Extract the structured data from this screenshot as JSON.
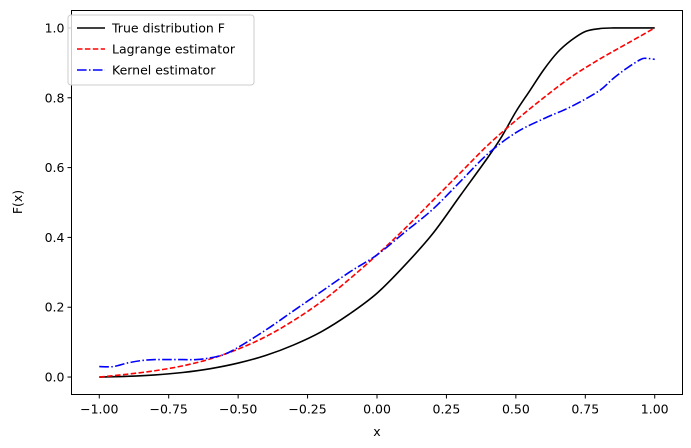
{
  "chart_data": {
    "type": "line",
    "title": "",
    "xlabel": "x",
    "ylabel": "F(x)",
    "xlim": [
      -1.1,
      1.1
    ],
    "ylim": [
      -0.05,
      1.05
    ],
    "xticks": [
      -1.0,
      -0.75,
      -0.5,
      -0.25,
      0.0,
      0.25,
      0.5,
      0.75,
      1.0
    ],
    "xtick_labels": [
      "−1.00",
      "−0.75",
      "−0.50",
      "−0.25",
      "0.00",
      "0.25",
      "0.50",
      "0.75",
      "1.00"
    ],
    "yticks": [
      0.0,
      0.2,
      0.4,
      0.6,
      0.8,
      1.0
    ],
    "ytick_labels": [
      "0.0",
      "0.2",
      "0.4",
      "0.6",
      "0.8",
      "1.0"
    ],
    "grid": false,
    "legend_position": "top-left",
    "series": [
      {
        "name": "True distribution F",
        "color": "#000000",
        "style": "solid",
        "x": [
          -1.0,
          -0.9,
          -0.8,
          -0.7,
          -0.6,
          -0.5,
          -0.4,
          -0.3,
          -0.2,
          -0.1,
          0.0,
          0.1,
          0.2,
          0.3,
          0.4,
          0.45,
          0.5,
          0.55,
          0.6,
          0.65,
          0.7,
          0.75,
          0.8,
          0.85,
          0.9,
          0.95,
          1.0
        ],
        "y": [
          0.0,
          0.002,
          0.006,
          0.013,
          0.024,
          0.04,
          0.062,
          0.092,
          0.13,
          0.18,
          0.24,
          0.32,
          0.41,
          0.52,
          0.63,
          0.69,
          0.76,
          0.82,
          0.88,
          0.93,
          0.965,
          0.99,
          0.998,
          1.0,
          1.0,
          1.0,
          1.0
        ]
      },
      {
        "name": "Lagrange estimator",
        "color": "#ff0000",
        "style": "dashed",
        "x": [
          -1.0,
          -0.9,
          -0.8,
          -0.7,
          -0.6,
          -0.5,
          -0.4,
          -0.3,
          -0.2,
          -0.1,
          0.0,
          0.1,
          0.2,
          0.3,
          0.4,
          0.5,
          0.6,
          0.7,
          0.8,
          0.9,
          1.0
        ],
        "y": [
          0.0,
          0.008,
          0.018,
          0.032,
          0.052,
          0.08,
          0.116,
          0.162,
          0.216,
          0.28,
          0.35,
          0.425,
          0.505,
          0.585,
          0.665,
          0.735,
          0.8,
          0.86,
          0.91,
          0.955,
          1.0
        ]
      },
      {
        "name": "Kernel estimator",
        "color": "#0000ff",
        "style": "dashdot",
        "x": [
          -1.0,
          -0.95,
          -0.9,
          -0.85,
          -0.8,
          -0.75,
          -0.7,
          -0.65,
          -0.6,
          -0.55,
          -0.5,
          -0.4,
          -0.3,
          -0.2,
          -0.1,
          0.0,
          0.1,
          0.2,
          0.3,
          0.4,
          0.5,
          0.6,
          0.7,
          0.8,
          0.85,
          0.9,
          0.95,
          0.97,
          1.0
        ],
        "y": [
          0.03,
          0.03,
          0.04,
          0.047,
          0.05,
          0.05,
          0.05,
          0.05,
          0.055,
          0.065,
          0.085,
          0.135,
          0.19,
          0.245,
          0.3,
          0.35,
          0.415,
          0.48,
          0.56,
          0.64,
          0.7,
          0.74,
          0.775,
          0.82,
          0.855,
          0.885,
          0.91,
          0.913,
          0.91
        ]
      }
    ]
  }
}
